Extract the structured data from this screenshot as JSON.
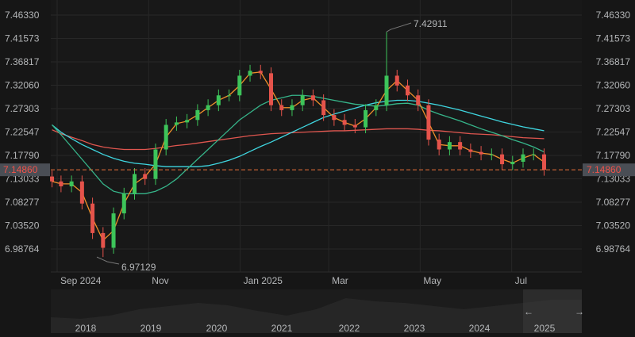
{
  "chart_data": {
    "type": "candlestick",
    "title": "",
    "y_ticks": [
      "7.46330",
      "7.41573",
      "7.36817",
      "7.32060",
      "7.27303",
      "7.22547",
      "7.17790",
      "7.13033",
      "7.08277",
      "7.03520",
      "6.98764"
    ],
    "ylim": [
      6.955,
      7.48
    ],
    "x_ticks": [
      {
        "label": "Sep 2024",
        "date": "2024-09-01"
      },
      {
        "label": "Nov",
        "date": "2024-11-01"
      },
      {
        "label": "Jan 2025",
        "date": "2025-01-01"
      },
      {
        "label": "Mar",
        "date": "2025-03-01"
      },
      {
        "label": "May",
        "date": "2025-05-01"
      },
      {
        "label": "Jul",
        "date": "2025-07-01"
      }
    ],
    "grid": true,
    "weeks": [
      "2024-08-27",
      "2024-09-02",
      "2024-09-09",
      "2024-09-16",
      "2024-09-23",
      "2024-09-30",
      "2024-10-07",
      "2024-10-14",
      "2024-10-21",
      "2024-10-28",
      "2024-11-04",
      "2024-11-11",
      "2024-11-18",
      "2024-11-25",
      "2024-12-02",
      "2024-12-09",
      "2024-12-16",
      "2024-12-23",
      "2024-12-30",
      "2025-01-06",
      "2025-01-13",
      "2025-01-20",
      "2025-01-27",
      "2025-02-03",
      "2025-02-10",
      "2025-02-17",
      "2025-02-24",
      "2025-03-03",
      "2025-03-10",
      "2025-03-17",
      "2025-03-24",
      "2025-03-31",
      "2025-04-07",
      "2025-04-14",
      "2025-04-21",
      "2025-04-28",
      "2025-05-05",
      "2025-05-12",
      "2025-05-19",
      "2025-05-26",
      "2025-06-02",
      "2025-06-09",
      "2025-06-16",
      "2025-06-23",
      "2025-06-30",
      "2025-07-07",
      "2025-07-14",
      "2025-07-21"
    ],
    "close": [
      7.125,
      7.115,
      7.125,
      7.08,
      7.02,
      6.99,
      7.06,
      7.1,
      7.14,
      7.13,
      7.19,
      7.24,
      7.245,
      7.25,
      7.27,
      7.28,
      7.3,
      7.3,
      7.34,
      7.35,
      7.345,
      7.28,
      7.27,
      7.28,
      7.3,
      7.29,
      7.26,
      7.25,
      7.24,
      7.235,
      7.27,
      7.28,
      7.34,
      7.32,
      7.3,
      7.28,
      7.21,
      7.19,
      7.205,
      7.19,
      7.185,
      7.18,
      7.18,
      7.16,
      7.165,
      7.18,
      7.18,
      7.1486
    ],
    "moving_averages": [
      {
        "color": "#e0564f",
        "values": [
          7.23,
          7.222,
          7.215,
          7.208,
          7.2,
          7.195,
          7.192,
          7.19,
          7.19,
          7.19,
          7.192,
          7.195,
          7.198,
          7.2,
          7.203,
          7.206,
          7.209,
          7.212,
          7.215,
          7.218,
          7.22,
          7.222,
          7.223,
          7.224,
          7.225,
          7.226,
          7.227,
          7.228,
          7.228,
          7.229,
          7.23,
          7.231,
          7.232,
          7.232,
          7.232,
          7.231,
          7.229,
          7.228,
          7.226,
          7.224,
          7.222,
          7.221,
          7.22,
          7.218,
          7.216,
          7.214,
          7.213,
          7.212
        ]
      },
      {
        "color": "#3fd6e0",
        "values": [
          7.24,
          7.225,
          7.212,
          7.2,
          7.19,
          7.18,
          7.172,
          7.166,
          7.162,
          7.16,
          7.157,
          7.155,
          7.155,
          7.155,
          7.155,
          7.157,
          7.162,
          7.168,
          7.176,
          7.186,
          7.196,
          7.205,
          7.215,
          7.225,
          7.235,
          7.245,
          7.255,
          7.262,
          7.268,
          7.274,
          7.28,
          7.285,
          7.288,
          7.29,
          7.29,
          7.288,
          7.284,
          7.28,
          7.275,
          7.27,
          7.264,
          7.258,
          7.252,
          7.246,
          7.241,
          7.236,
          7.232,
          7.228
        ]
      },
      {
        "color": "#36b58a",
        "values": [
          7.24,
          7.22,
          7.195,
          7.17,
          7.145,
          7.12,
          7.105,
          7.1,
          7.1,
          7.1,
          7.105,
          7.115,
          7.13,
          7.15,
          7.17,
          7.19,
          7.21,
          7.23,
          7.25,
          7.265,
          7.28,
          7.29,
          7.295,
          7.3,
          7.3,
          7.298,
          7.294,
          7.29,
          7.286,
          7.282,
          7.28,
          7.278,
          7.28,
          7.283,
          7.284,
          7.28,
          7.27,
          7.262,
          7.255,
          7.248,
          7.24,
          7.232,
          7.225,
          7.218,
          7.21,
          7.203,
          7.195,
          7.185
        ]
      }
    ],
    "annotations": {
      "high": "7.42911",
      "high_date": "2025-04-09",
      "low": "6.97129",
      "low_date": "2024-09-30"
    },
    "last_price": "7.14860",
    "navigator": {
      "years": [
        "2018",
        "2019",
        "2020",
        "2021",
        "2022",
        "2023",
        "2024",
        "2025"
      ]
    },
    "colors": {
      "up": "#3dc45a",
      "down": "#e5534b",
      "last_price": "#e8703a",
      "last_label_bg": "#4a4e55",
      "last_label_text": "#f0524a"
    }
  }
}
